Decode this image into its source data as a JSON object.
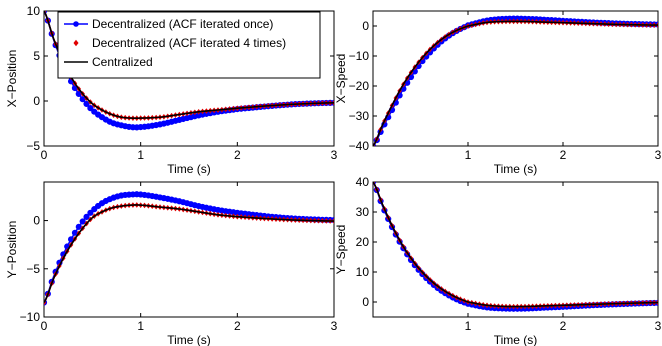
{
  "colors": {
    "blue": "#0000ff",
    "red": "#e00000",
    "black": "#000000"
  },
  "legend": {
    "placement": "top-right",
    "entries": [
      {
        "label": "Decentralized (ACF iterated once)",
        "color": "#0000ff",
        "marker": "circle"
      },
      {
        "label": "Decentralized (ACF iterated 4 times)",
        "color": "#e00000",
        "marker": "diamond"
      },
      {
        "label": "Centralized",
        "color": "#000000",
        "marker": "line"
      }
    ]
  },
  "chart_data": [
    {
      "type": "line",
      "xlabel": "Time (s)",
      "ylabel": "X−Position",
      "xlim": [
        0,
        3
      ],
      "ylim": [
        -5,
        10
      ],
      "xticks": [
        0,
        1,
        2,
        3
      ],
      "yticks": [
        -5,
        0,
        5,
        10
      ],
      "ytick_labels": [
        "−5",
        "0",
        "5",
        "10"
      ],
      "series": [
        {
          "name": "Decentralized (ACF iterated once)",
          "x": [
            0,
            0.1,
            0.2,
            0.3,
            0.4,
            0.5,
            0.6,
            0.7,
            0.8,
            0.9,
            1.0,
            1.2,
            1.4,
            1.6,
            1.8,
            2.0,
            2.3,
            2.6,
            3.0
          ],
          "y": [
            10,
            6.8,
            4.0,
            1.8,
            0.2,
            -1.0,
            -1.8,
            -2.4,
            -2.7,
            -2.9,
            -2.9,
            -2.6,
            -2.1,
            -1.6,
            -1.2,
            -0.9,
            -0.6,
            -0.35,
            -0.2
          ]
        },
        {
          "name": "Decentralized (ACF iterated 4 times)",
          "x": [
            0,
            0.1,
            0.2,
            0.3,
            0.4,
            0.5,
            0.6,
            0.7,
            0.8,
            0.9,
            1.0,
            1.2,
            1.4,
            1.6,
            1.8,
            2.0,
            2.3,
            2.6,
            3.0
          ],
          "y": [
            10,
            6.9,
            4.3,
            2.3,
            0.8,
            -0.3,
            -1.0,
            -1.5,
            -1.8,
            -1.9,
            -1.9,
            -1.8,
            -1.5,
            -1.2,
            -1.0,
            -0.8,
            -0.55,
            -0.35,
            -0.2
          ]
        },
        {
          "name": "Centralized",
          "x": [
            0,
            0.1,
            0.2,
            0.3,
            0.4,
            0.5,
            0.6,
            0.7,
            0.8,
            0.9,
            1.0,
            1.2,
            1.4,
            1.6,
            1.8,
            2.0,
            2.3,
            2.6,
            3.0
          ],
          "y": [
            10,
            6.9,
            4.3,
            2.3,
            0.8,
            -0.3,
            -1.0,
            -1.5,
            -1.8,
            -1.9,
            -1.9,
            -1.8,
            -1.5,
            -1.2,
            -1.0,
            -0.8,
            -0.55,
            -0.35,
            -0.2
          ]
        }
      ]
    },
    {
      "type": "line",
      "xlabel": "Time (s)",
      "ylabel": "X−Speed",
      "xlim": [
        0,
        3
      ],
      "ylim": [
        -40,
        5
      ],
      "xticks": [
        1,
        2,
        3
      ],
      "yticks": [
        -40,
        -30,
        -20,
        -10,
        0
      ],
      "ytick_labels": [
        "−40",
        "−30",
        "−20",
        "−10",
        "0"
      ],
      "series": [
        {
          "name": "Decentralized (ACF iterated once)",
          "x": [
            0,
            0.1,
            0.2,
            0.3,
            0.4,
            0.5,
            0.6,
            0.7,
            0.8,
            0.9,
            1.0,
            1.2,
            1.4,
            1.6,
            1.8,
            2.0,
            2.3,
            2.6,
            3.0
          ],
          "y": [
            -40,
            -34,
            -28,
            -22,
            -17,
            -12.5,
            -8.8,
            -5.7,
            -3.2,
            -1.3,
            0.2,
            1.8,
            2.4,
            2.4,
            2.1,
            1.7,
            1.2,
            0.8,
            0.5
          ]
        },
        {
          "name": "Decentralized (ACF iterated 4 times)",
          "x": [
            0,
            0.1,
            0.2,
            0.3,
            0.4,
            0.5,
            0.6,
            0.7,
            0.8,
            0.9,
            1.0,
            1.2,
            1.4,
            1.6,
            1.8,
            2.0,
            2.3,
            2.6,
            3.0
          ],
          "y": [
            -40,
            -33,
            -26.5,
            -20.5,
            -15.5,
            -11.3,
            -7.8,
            -5.0,
            -2.8,
            -1.2,
            0.0,
            1.2,
            1.5,
            1.5,
            1.3,
            1.1,
            0.8,
            0.5,
            0.3
          ]
        },
        {
          "name": "Centralized",
          "x": [
            0,
            0.1,
            0.2,
            0.3,
            0.4,
            0.5,
            0.6,
            0.7,
            0.8,
            0.9,
            1.0,
            1.2,
            1.4,
            1.6,
            1.8,
            2.0,
            2.3,
            2.6,
            3.0
          ],
          "y": [
            -40,
            -33,
            -26.5,
            -20.5,
            -15.5,
            -11.3,
            -7.8,
            -5.0,
            -2.8,
            -1.2,
            0.0,
            1.2,
            1.5,
            1.5,
            1.3,
            1.1,
            0.8,
            0.5,
            0.3
          ]
        }
      ]
    },
    {
      "type": "line",
      "xlabel": "Time (s)",
      "ylabel": "Y−Position",
      "xlim": [
        0,
        3
      ],
      "ylim": [
        -10,
        4
      ],
      "xticks": [
        0,
        1,
        2,
        3
      ],
      "yticks": [
        -10,
        -5,
        0
      ],
      "ytick_labels": [
        "−10",
        "−5",
        "0"
      ],
      "series": [
        {
          "name": "Decentralized (ACF iterated once)",
          "x": [
            0,
            0.1,
            0.2,
            0.3,
            0.4,
            0.5,
            0.6,
            0.7,
            0.8,
            0.9,
            1.0,
            1.2,
            1.4,
            1.6,
            1.8,
            2.0,
            2.3,
            2.6,
            3.0
          ],
          "y": [
            -8.5,
            -5.8,
            -3.5,
            -1.6,
            -0.1,
            1.0,
            1.8,
            2.3,
            2.6,
            2.7,
            2.7,
            2.4,
            2.0,
            1.5,
            1.1,
            0.8,
            0.45,
            0.2,
            0.05
          ]
        },
        {
          "name": "Decentralized (ACF iterated 4 times)",
          "x": [
            0,
            0.1,
            0.2,
            0.3,
            0.4,
            0.5,
            0.6,
            0.7,
            0.8,
            0.9,
            1.0,
            1.2,
            1.4,
            1.6,
            1.8,
            2.0,
            2.3,
            2.6,
            3.0
          ],
          "y": [
            -8.5,
            -6.0,
            -3.9,
            -2.2,
            -0.8,
            0.3,
            0.9,
            1.3,
            1.5,
            1.6,
            1.6,
            1.4,
            1.2,
            0.9,
            0.6,
            0.4,
            0.2,
            0.05,
            -0.05
          ]
        },
        {
          "name": "Centralized",
          "x": [
            0,
            0.1,
            0.2,
            0.3,
            0.4,
            0.5,
            0.6,
            0.7,
            0.8,
            0.9,
            1.0,
            1.2,
            1.4,
            1.6,
            1.8,
            2.0,
            2.3,
            2.6,
            3.0
          ],
          "y": [
            -8.5,
            -6.0,
            -3.9,
            -2.2,
            -0.8,
            0.3,
            0.9,
            1.3,
            1.5,
            1.6,
            1.6,
            1.4,
            1.2,
            0.9,
            0.6,
            0.4,
            0.2,
            0.05,
            -0.05
          ]
        }
      ]
    },
    {
      "type": "line",
      "xlabel": "Time (s)",
      "ylabel": "Y−Speed",
      "xlim": [
        0,
        3
      ],
      "ylim": [
        -5,
        40
      ],
      "xticks": [
        1,
        2,
        3
      ],
      "yticks": [
        0,
        10,
        20,
        30,
        40
      ],
      "ytick_labels": [
        "0",
        "10",
        "20",
        "30",
        "40"
      ],
      "series": [
        {
          "name": "Decentralized (ACF iterated once)",
          "x": [
            0,
            0.1,
            0.2,
            0.3,
            0.4,
            0.5,
            0.6,
            0.7,
            0.8,
            0.9,
            1.0,
            1.2,
            1.4,
            1.6,
            1.8,
            2.0,
            2.3,
            2.6,
            3.0
          ],
          "y": [
            40,
            32,
            25,
            19,
            14,
            10,
            6.8,
            4.2,
            2.2,
            0.6,
            -0.6,
            -1.8,
            -2.2,
            -2.2,
            -1.9,
            -1.6,
            -1.1,
            -0.7,
            -0.3
          ]
        },
        {
          "name": "Decentralized (ACF iterated 4 times)",
          "x": [
            0,
            0.1,
            0.2,
            0.3,
            0.4,
            0.5,
            0.6,
            0.7,
            0.8,
            0.9,
            1.0,
            1.2,
            1.4,
            1.6,
            1.8,
            2.0,
            2.3,
            2.6,
            3.0
          ],
          "y": [
            40,
            32.5,
            25.5,
            19.5,
            14.6,
            10.6,
            7.4,
            4.8,
            2.8,
            1.2,
            0.0,
            -1.1,
            -1.5,
            -1.5,
            -1.3,
            -1.1,
            -0.8,
            -0.5,
            -0.2
          ]
        },
        {
          "name": "Centralized",
          "x": [
            0,
            0.1,
            0.2,
            0.3,
            0.4,
            0.5,
            0.6,
            0.7,
            0.8,
            0.9,
            1.0,
            1.2,
            1.4,
            1.6,
            1.8,
            2.0,
            2.3,
            2.6,
            3.0
          ],
          "y": [
            40,
            32.5,
            25.5,
            19.5,
            14.6,
            10.6,
            7.4,
            4.8,
            2.8,
            1.2,
            0.0,
            -1.1,
            -1.5,
            -1.5,
            -1.3,
            -1.1,
            -0.8,
            -0.5,
            -0.2
          ]
        }
      ]
    }
  ]
}
